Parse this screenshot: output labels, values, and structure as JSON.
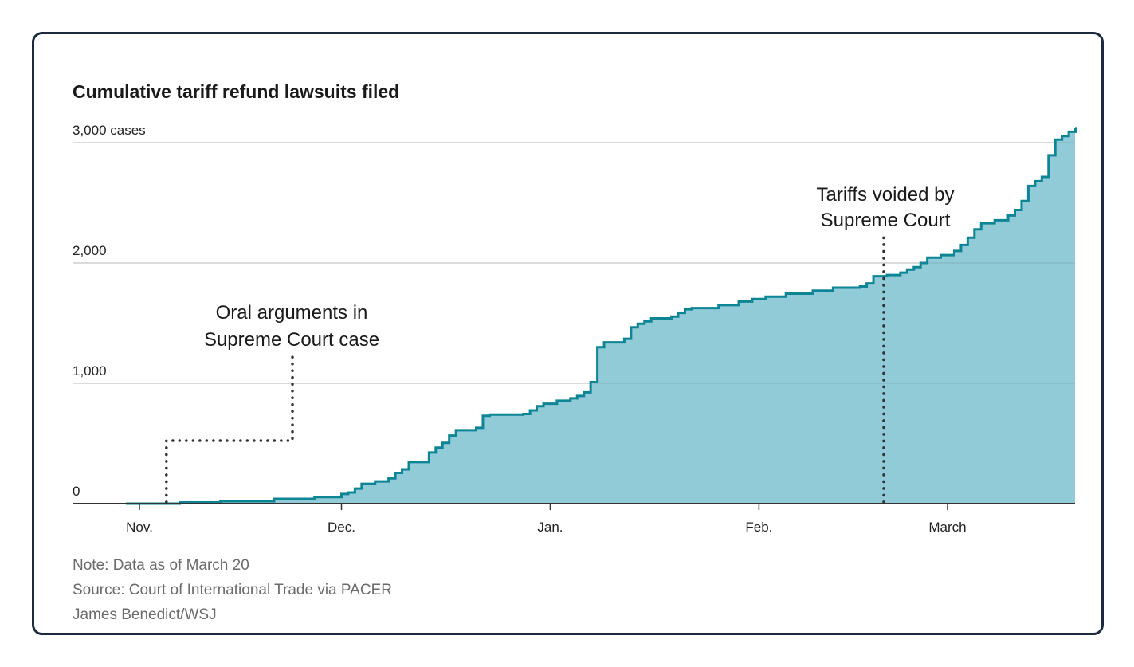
{
  "chart_data": {
    "type": "area",
    "title": "Cumulative tariff refund lawsuits filed",
    "ylabel_unit": "cases",
    "ylim": [
      0,
      3000
    ],
    "yticks": [
      {
        "value": 0,
        "label": "0"
      },
      {
        "value": 1000,
        "label": "1,000"
      },
      {
        "value": 2000,
        "label": "2,000"
      },
      {
        "value": 3000,
        "label": "3,000 cases"
      }
    ],
    "xticks": [
      {
        "date": "2025-11-01",
        "label": "Nov."
      },
      {
        "date": "2025-12-01",
        "label": "Dec."
      },
      {
        "date": "2026-01-01",
        "label": "Jan."
      },
      {
        "date": "2026-02-01",
        "label": "Feb."
      },
      {
        "date": "2026-03-01",
        "label": "March"
      }
    ],
    "grid": true,
    "step": true,
    "colors": {
      "line": "#0e8595",
      "fill": "#91cbd8",
      "grid": "#e2e2e2",
      "axis": "#333333"
    },
    "points": [
      [
        "2025-10-30",
        0
      ],
      [
        "2025-11-07",
        10
      ],
      [
        "2025-11-13",
        20
      ],
      [
        "2025-11-21",
        40
      ],
      [
        "2025-11-27",
        55
      ],
      [
        "2025-12-01",
        80
      ],
      [
        "2025-12-02",
        93
      ],
      [
        "2025-12-03",
        125
      ],
      [
        "2025-12-04",
        165
      ],
      [
        "2025-12-06",
        185
      ],
      [
        "2025-12-08",
        210
      ],
      [
        "2025-12-09",
        255
      ],
      [
        "2025-12-10",
        285
      ],
      [
        "2025-12-11",
        345
      ],
      [
        "2025-12-14",
        425
      ],
      [
        "2025-12-15",
        465
      ],
      [
        "2025-12-16",
        505
      ],
      [
        "2025-12-17",
        565
      ],
      [
        "2025-12-18",
        610
      ],
      [
        "2025-12-21",
        630
      ],
      [
        "2025-12-22",
        730
      ],
      [
        "2025-12-23",
        740
      ],
      [
        "2025-12-28",
        745
      ],
      [
        "2025-12-29",
        775
      ],
      [
        "2025-12-30",
        810
      ],
      [
        "2025-12-31",
        830
      ],
      [
        "2026-01-02",
        855
      ],
      [
        "2026-01-04",
        875
      ],
      [
        "2026-01-05",
        895
      ],
      [
        "2026-01-06",
        925
      ],
      [
        "2026-01-07",
        1010
      ],
      [
        "2026-01-08",
        1300
      ],
      [
        "2026-01-09",
        1340
      ],
      [
        "2026-01-12",
        1370
      ],
      [
        "2026-01-13",
        1465
      ],
      [
        "2026-01-14",
        1495
      ],
      [
        "2026-01-15",
        1515
      ],
      [
        "2026-01-16",
        1540
      ],
      [
        "2026-01-19",
        1555
      ],
      [
        "2026-01-20",
        1585
      ],
      [
        "2026-01-21",
        1615
      ],
      [
        "2026-01-22",
        1625
      ],
      [
        "2026-01-26",
        1650
      ],
      [
        "2026-01-29",
        1680
      ],
      [
        "2026-01-31",
        1700
      ],
      [
        "2026-02-02",
        1720
      ],
      [
        "2026-02-05",
        1745
      ],
      [
        "2026-02-09",
        1770
      ],
      [
        "2026-02-12",
        1795
      ],
      [
        "2026-02-16",
        1805
      ],
      [
        "2026-02-17",
        1830
      ],
      [
        "2026-02-18",
        1890
      ],
      [
        "2026-02-20",
        1900
      ],
      [
        "2026-02-22",
        1920
      ],
      [
        "2026-02-23",
        1945
      ],
      [
        "2026-02-24",
        1965
      ],
      [
        "2026-02-25",
        2000
      ],
      [
        "2026-02-26",
        2045
      ],
      [
        "2026-02-28",
        2065
      ],
      [
        "2026-03-02",
        2100
      ],
      [
        "2026-03-03",
        2150
      ],
      [
        "2026-03-04",
        2210
      ],
      [
        "2026-03-05",
        2280
      ],
      [
        "2026-03-06",
        2330
      ],
      [
        "2026-03-08",
        2355
      ],
      [
        "2026-03-10",
        2395
      ],
      [
        "2026-03-11",
        2440
      ],
      [
        "2026-03-12",
        2515
      ],
      [
        "2026-03-13",
        2640
      ],
      [
        "2026-03-14",
        2680
      ],
      [
        "2026-03-15",
        2715
      ],
      [
        "2026-03-16",
        2895
      ],
      [
        "2026-03-17",
        3025
      ],
      [
        "2026-03-18",
        3055
      ],
      [
        "2026-03-19",
        3090
      ],
      [
        "2026-03-20",
        3120
      ]
    ],
    "annotations": [
      {
        "date": "2025-11-05",
        "lines": [
          "Oral arguments in",
          "Supreme Court case"
        ]
      },
      {
        "date": "2026-02-20",
        "lines": [
          "Tariffs voided by",
          "Supreme Court"
        ]
      }
    ]
  },
  "footer": {
    "note": "Note: Data as of March 20",
    "source": "Source: Court of International Trade via PACER",
    "credit": "James Benedict/WSJ"
  }
}
